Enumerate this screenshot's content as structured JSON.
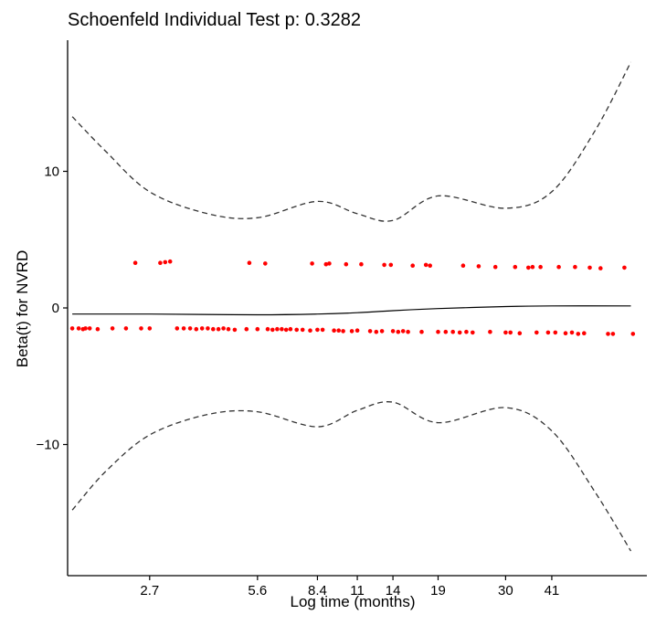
{
  "chart_data": {
    "type": "scatter",
    "title": "Schoenfeld Individual Test p: 0.3282",
    "xlabel": "Log time  (months)",
    "ylabel": "Beta(t) for NVRD",
    "x_scale": "log",
    "x_ticks": [
      2.7,
      5.6,
      8.4,
      11,
      14,
      19,
      30,
      41
    ],
    "x_tick_labels": [
      "2.7",
      "5.6",
      "8.4",
      "11",
      "14",
      "19",
      "30",
      "41"
    ],
    "xlim": [
      1.55,
      78
    ],
    "y_ticks": [
      -10,
      0,
      10
    ],
    "y_tick_labels": [
      "−10",
      "0",
      "10"
    ],
    "ylim": [
      -19.6,
      19.6
    ],
    "grid": false,
    "colors": {
      "points": "#ff0000",
      "fit": "#000000",
      "band": "#333333"
    },
    "series": [
      {
        "kind": "points",
        "x": [
          1.6,
          1.67,
          1.72,
          1.75,
          1.8,
          1.9,
          2.1,
          2.3,
          2.45,
          2.55,
          2.7,
          2.9,
          3.0,
          3.1,
          3.25,
          3.4,
          3.55,
          3.7,
          3.85,
          4.0,
          4.15,
          4.3,
          4.45,
          4.6,
          4.8,
          5.2,
          5.3,
          5.6,
          5.9,
          6.0,
          6.2,
          6.4,
          6.6,
          6.8,
          7.0,
          7.3,
          7.6,
          8.0,
          8.1,
          8.4,
          8.7,
          8.9,
          9.1,
          9.4,
          9.7,
          10.0,
          10.2,
          10.6,
          11.0,
          11.3,
          12.0,
          12.5,
          13.0,
          13.2,
          13.8,
          14.0,
          14.5,
          15.0,
          15.5,
          16.0,
          17.0,
          17.5,
          18.0,
          19.0,
          20.0,
          21.0,
          22.0,
          22.5,
          23.0,
          24.0,
          25.0,
          27.0,
          28.0,
          30.0,
          31.0,
          32.0,
          33.0,
          35.0,
          36.0,
          37.0,
          38.0,
          40.0,
          42.0,
          43.0,
          45.0,
          47.0,
          48.0,
          49.0,
          51.0,
          53.0,
          57.0,
          60.0,
          62.0,
          67.0,
          71.0
        ],
        "y": [
          -1.5,
          -1.5,
          -1.55,
          -1.5,
          -1.5,
          -1.55,
          -1.5,
          -1.5,
          3.3,
          -1.5,
          -1.5,
          3.3,
          3.35,
          3.4,
          -1.5,
          -1.5,
          -1.5,
          -1.55,
          -1.5,
          -1.5,
          -1.55,
          -1.55,
          -1.5,
          -1.55,
          -1.6,
          -1.55,
          3.3,
          -1.55,
          3.25,
          -1.55,
          -1.6,
          -1.55,
          -1.55,
          -1.6,
          -1.55,
          -1.6,
          -1.6,
          -1.65,
          3.25,
          -1.6,
          -1.6,
          3.2,
          3.25,
          -1.65,
          -1.65,
          -1.7,
          3.2,
          -1.7,
          -1.65,
          3.2,
          -1.7,
          -1.75,
          -1.7,
          3.15,
          3.15,
          -1.7,
          -1.75,
          -1.7,
          -1.75,
          3.1,
          -1.75,
          3.15,
          3.1,
          -1.75,
          -1.75,
          -1.75,
          -1.8,
          3.1,
          -1.75,
          -1.8,
          3.05,
          -1.75,
          3.0,
          -1.8,
          -1.8,
          3.0,
          -1.85,
          2.95,
          3.0,
          -1.8,
          3.0,
          -1.8,
          -1.8,
          3.0,
          -1.85,
          -1.8,
          3.0,
          -1.9,
          -1.85,
          2.95,
          2.9,
          -1.9,
          -1.9,
          2.95,
          -1.9
        ]
      },
      {
        "kind": "fit",
        "x": [
          1.6,
          2.7,
          5.6,
          8.4,
          11,
          14,
          19,
          30,
          41,
          70
        ],
        "y": [
          -0.45,
          -0.45,
          -0.5,
          -0.45,
          -0.35,
          -0.2,
          -0.05,
          0.1,
          0.15,
          0.15
        ]
      },
      {
        "kind": "upper",
        "x": [
          1.6,
          2.0,
          2.7,
          4.0,
          5.6,
          8.4,
          11,
          14,
          19,
          30,
          41,
          55,
          70
        ],
        "y": [
          14.0,
          11.5,
          8.5,
          6.9,
          6.6,
          7.8,
          6.9,
          6.4,
          8.2,
          7.3,
          8.5,
          13.0,
          18.0
        ]
      },
      {
        "kind": "lower",
        "x": [
          1.6,
          2.0,
          2.7,
          4.0,
          5.6,
          8.4,
          11,
          14,
          19,
          30,
          41,
          55,
          70
        ],
        "y": [
          -14.8,
          -12.0,
          -9.3,
          -7.8,
          -7.6,
          -8.7,
          -7.5,
          -6.9,
          -8.4,
          -7.3,
          -9.0,
          -13.5,
          -17.8
        ]
      }
    ]
  }
}
